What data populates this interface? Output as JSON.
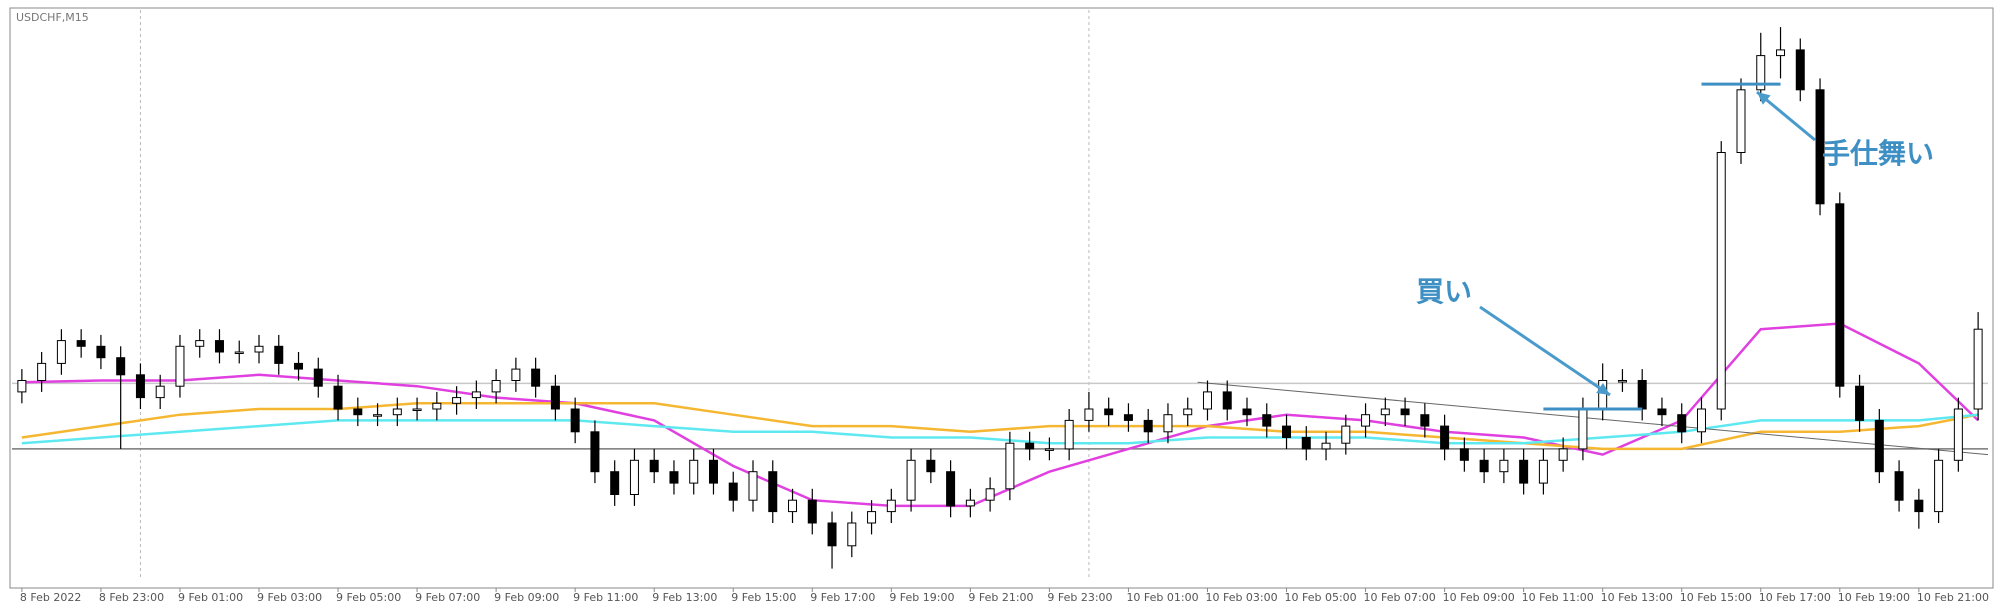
{
  "chart_data": {
    "type": "candlestick",
    "title": "USDCHF,M15",
    "x": [
      0,
      2,
      4,
      6,
      8,
      10,
      12,
      14,
      16,
      18,
      20,
      22,
      24,
      26,
      28,
      30,
      32,
      34,
      36,
      38,
      40,
      42,
      44,
      46,
      48,
      50,
      52,
      54,
      56,
      58,
      60,
      62,
      64,
      66,
      68,
      70,
      72,
      74,
      76,
      78,
      80,
      82,
      84,
      86,
      88,
      90,
      92,
      94,
      96,
      98,
      100,
      102,
      104,
      106,
      108,
      110,
      112,
      114,
      116,
      118,
      120,
      122,
      124,
      126,
      128,
      130,
      132,
      134,
      136,
      138,
      140,
      142,
      144,
      146,
      148,
      150,
      152,
      154,
      156,
      158,
      160,
      162,
      164,
      166,
      168,
      170,
      172,
      174,
      176,
      178,
      180,
      182,
      184,
      186,
      188,
      190,
      192,
      194,
      196,
      198
    ],
    "open": [
      33,
      35,
      38,
      42,
      41,
      39,
      36,
      32,
      34,
      41,
      42,
      40,
      40,
      41,
      38,
      37,
      34,
      30,
      29,
      29,
      30,
      30,
      31,
      32,
      33,
      35,
      37,
      34,
      30,
      26,
      19,
      15,
      21,
      19,
      17,
      21,
      17,
      14,
      19,
      12,
      14,
      10,
      6,
      10,
      12,
      14,
      21,
      19,
      13,
      14,
      16,
      24,
      23,
      23,
      28,
      30,
      29,
      28,
      26,
      29,
      30,
      33,
      30,
      29,
      27,
      25,
      23,
      24,
      27,
      29,
      30,
      29,
      27,
      23,
      21,
      19,
      21,
      17,
      21,
      23,
      30,
      35,
      35,
      30,
      29,
      26,
      30,
      75,
      86,
      92,
      93,
      86,
      66,
      34,
      28,
      19,
      14,
      12,
      21,
      30
    ],
    "high": [
      37,
      40,
      44,
      44,
      43,
      41,
      38,
      36,
      43,
      44,
      44,
      42,
      43,
      43,
      40,
      39,
      36,
      32,
      31,
      32,
      32,
      33,
      34,
      35,
      37,
      39,
      39,
      36,
      32,
      28,
      21,
      23,
      23,
      21,
      23,
      23,
      19,
      21,
      21,
      16,
      16,
      12,
      12,
      14,
      16,
      23,
      23,
      21,
      16,
      18,
      26,
      26,
      25,
      30,
      33,
      32,
      31,
      30,
      31,
      32,
      35,
      35,
      32,
      31,
      29,
      27,
      26,
      29,
      31,
      32,
      32,
      31,
      29,
      25,
      23,
      23,
      23,
      23,
      25,
      32,
      38,
      37,
      37,
      32,
      31,
      32,
      77,
      88,
      96,
      97,
      95,
      88,
      68,
      36,
      30,
      21,
      16,
      23,
      32,
      47
    ],
    "low": [
      31,
      33,
      36,
      39,
      37,
      23,
      30,
      30,
      32,
      39,
      38,
      38,
      38,
      36,
      35,
      32,
      28,
      27,
      27,
      27,
      28,
      28,
      29,
      30,
      31,
      33,
      32,
      28,
      24,
      17,
      13,
      13,
      17,
      15,
      15,
      15,
      12,
      12,
      10,
      10,
      8,
      2,
      4,
      8,
      10,
      12,
      17,
      11,
      11,
      12,
      14,
      21,
      21,
      21,
      26,
      27,
      26,
      24,
      24,
      27,
      28,
      28,
      27,
      25,
      23,
      21,
      21,
      22,
      25,
      27,
      27,
      25,
      21,
      19,
      17,
      17,
      15,
      15,
      19,
      21,
      28,
      33,
      28,
      27,
      24,
      24,
      28,
      73,
      84,
      88,
      84,
      64,
      32,
      26,
      17,
      12,
      9,
      10,
      19,
      28
    ],
    "close": [
      35,
      38,
      42,
      41,
      39,
      36,
      32,
      34,
      41,
      42,
      40,
      40,
      41,
      38,
      37,
      34,
      30,
      29,
      29,
      30,
      30,
      31,
      32,
      33,
      35,
      37,
      34,
      30,
      26,
      19,
      15,
      21,
      19,
      17,
      21,
      17,
      14,
      19,
      12,
      14,
      10,
      6,
      10,
      12,
      14,
      21,
      19,
      13,
      14,
      16,
      24,
      23,
      23,
      28,
      30,
      29,
      28,
      26,
      29,
      30,
      33,
      30,
      29,
      27,
      25,
      23,
      24,
      27,
      29,
      30,
      29,
      27,
      23,
      21,
      19,
      21,
      17,
      21,
      23,
      30,
      35,
      35,
      30,
      29,
      26,
      30,
      75,
      86,
      92,
      93,
      86,
      66,
      34,
      28,
      19,
      14,
      12,
      21,
      30,
      44
    ],
    "up_color": "#ffffff",
    "down_color": "#000000",
    "lines": [
      {
        "color": "#e040e0",
        "x": [
          0,
          8,
          16,
          24,
          32,
          40,
          48,
          56,
          64,
          72,
          80,
          88,
          96,
          104,
          112,
          120,
          128,
          136,
          144,
          152,
          160,
          168,
          176,
          184,
          192,
          198
        ],
        "values": [
          34.7,
          35,
          35,
          36,
          35,
          34,
          32,
          31,
          28,
          20,
          14,
          13,
          13,
          19,
          23,
          27,
          29,
          28,
          26,
          25,
          22,
          28,
          44,
          45,
          38,
          28
        ]
      },
      {
        "color": "#f5b731",
        "x": [
          0,
          8,
          16,
          24,
          32,
          40,
          48,
          56,
          64,
          72,
          80,
          88,
          96,
          104,
          112,
          120,
          128,
          136,
          144,
          152,
          160,
          168,
          176,
          184,
          192,
          198
        ],
        "values": [
          25,
          27,
          29,
          30,
          30,
          31,
          31,
          31,
          31,
          29,
          27,
          27,
          26,
          27,
          27,
          27,
          26,
          26,
          25,
          24,
          23,
          23,
          26,
          26,
          27,
          29
        ]
      },
      {
        "color": "#5ee8f0",
        "x": [
          0,
          8,
          16,
          24,
          32,
          40,
          48,
          56,
          64,
          72,
          80,
          88,
          96,
          104,
          112,
          120,
          128,
          136,
          144,
          152,
          160,
          168,
          176,
          184,
          192,
          198
        ],
        "values": [
          24,
          25,
          26,
          27,
          28,
          28,
          28,
          28,
          27,
          26,
          26,
          25,
          25,
          24,
          24,
          25,
          25,
          25,
          24,
          24,
          25,
          26,
          28,
          28,
          28,
          29
        ]
      }
    ],
    "hlines": [
      {
        "value": 23,
        "color": "#777777"
      },
      {
        "value": 34.5,
        "color": "#c8c8c8"
      }
    ],
    "vlines": [
      12,
      108
    ],
    "trendline": {
      "x": [
        119,
        199
      ],
      "values": [
        34.7,
        22
      ]
    },
    "annotations": [
      {
        "text": "買い",
        "level": 30,
        "x": [
          154,
          164
        ]
      },
      {
        "text": "手仕舞い",
        "level": 87,
        "x": [
          170,
          178
        ]
      }
    ],
    "xlim": [
      -1,
      199
    ],
    "ylim": [
      0,
      100
    ],
    "xticks": [
      {
        "value": 0,
        "label": "8 Feb 2022"
      },
      {
        "value": 8,
        "label": "8 Feb 23:00"
      },
      {
        "value": 16,
        "label": "9 Feb 01:00"
      },
      {
        "value": 24,
        "label": "9 Feb 03:00"
      },
      {
        "value": 32,
        "label": "9 Feb 05:00"
      },
      {
        "value": 40,
        "label": "9 Feb 07:00"
      },
      {
        "value": 48,
        "label": "9 Feb 09:00"
      },
      {
        "value": 56,
        "label": "9 Feb 11:00"
      },
      {
        "value": 64,
        "label": "9 Feb 13:00"
      },
      {
        "value": 72,
        "label": "9 Feb 15:00"
      },
      {
        "value": 80,
        "label": "9 Feb 17:00"
      },
      {
        "value": 88,
        "label": "9 Feb 19:00"
      },
      {
        "value": 96,
        "label": "9 Feb 21:00"
      },
      {
        "value": 104,
        "label": "9 Feb 23:00"
      },
      {
        "value": 112,
        "label": "10 Feb 01:00"
      },
      {
        "value": 120,
        "label": "10 Feb 03:00"
      },
      {
        "value": 128,
        "label": "10 Feb 05:00"
      },
      {
        "value": 136,
        "label": "10 Feb 07:00"
      },
      {
        "value": 144,
        "label": "10 Feb 09:00"
      },
      {
        "value": 152,
        "label": "10 Feb 11:00"
      },
      {
        "value": 160,
        "label": "10 Feb 13:00"
      },
      {
        "value": 168,
        "label": "10 Feb 15:00"
      },
      {
        "value": 176,
        "label": "10 Feb 17:00"
      },
      {
        "value": 184,
        "label": "10 Feb 19:00"
      },
      {
        "value": 192,
        "label": "10 Feb 21:00"
      }
    ]
  }
}
